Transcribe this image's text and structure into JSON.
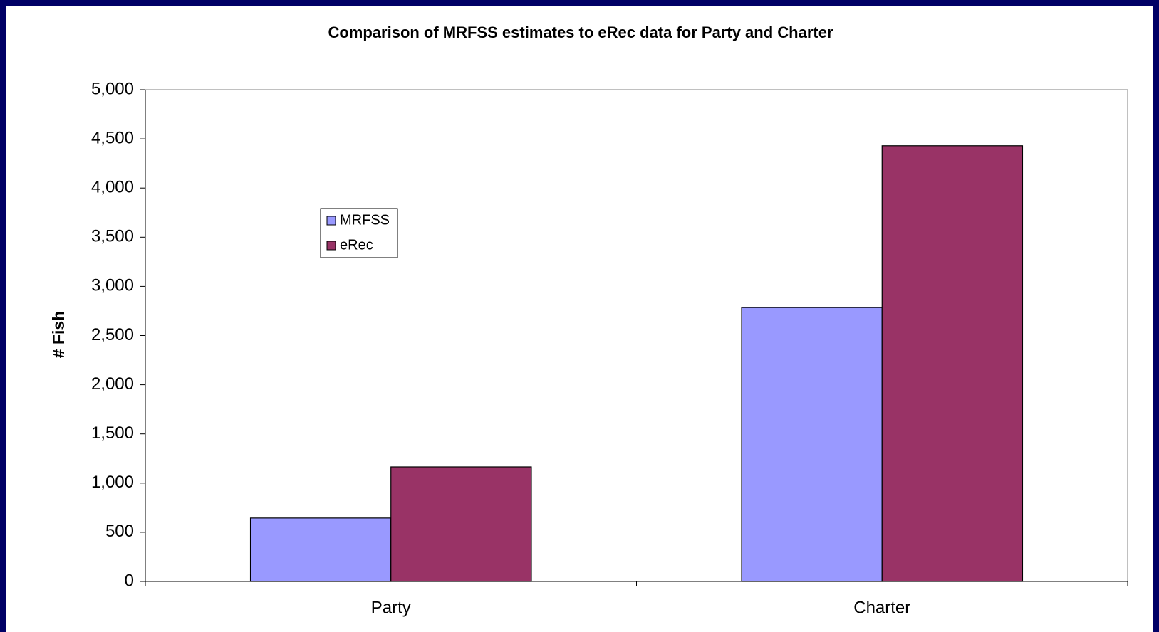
{
  "chart_data": {
    "type": "bar",
    "title": "Comparison of MRFSS estimates to eRec data for Party and Charter",
    "y_label": "# Fish",
    "categories": [
      "Party",
      "Charter"
    ],
    "series": [
      {
        "name": "MRFSS",
        "color": "#9999ff",
        "values": [
          645,
          2785
        ]
      },
      {
        "name": "eRec",
        "color": "#993366",
        "values": [
          1165,
          4430
        ]
      }
    ],
    "ylim": [
      0,
      5000
    ],
    "yticks": [
      0,
      500,
      {
        "value": 1000,
        "label": "1,000"
      },
      {
        "value": 1500,
        "label": "1,500"
      },
      {
        "value": 2000,
        "label": "2,000"
      },
      {
        "value": 2500,
        "label": "2,500"
      },
      {
        "value": 3000,
        "label": "3,000"
      },
      {
        "value": 3500,
        "label": "3,500"
      },
      {
        "value": 4000,
        "label": "4,000"
      },
      {
        "value": 4500,
        "label": "4,500"
      },
      {
        "value": 5000,
        "label": "5,000"
      }
    ],
    "grid": false,
    "legend": "upper left"
  }
}
